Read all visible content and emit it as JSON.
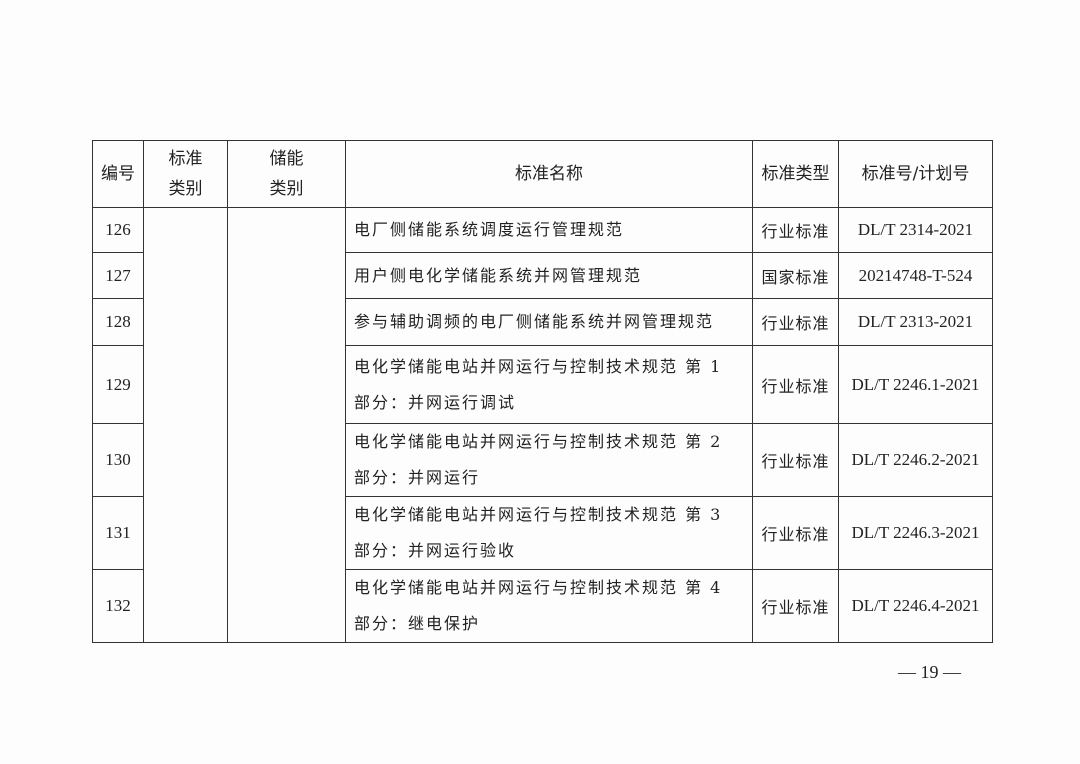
{
  "table": {
    "headers": [
      "编号",
      "标准类别",
      "储能类别",
      "标准名称",
      "标准类型",
      "标准号/计划号"
    ],
    "header_lines": {
      "col2": [
        "标准",
        "类别"
      ],
      "col3": [
        "储能",
        "类别"
      ]
    },
    "rows": [
      {
        "num": "126",
        "name": "电厂侧储能系统调度运行管理规范",
        "type": "行业标准",
        "code": "DL/T 2314-2021"
      },
      {
        "num": "127",
        "name": "用户侧电化学储能系统并网管理规范",
        "type": "国家标准",
        "code": "20214748-T-524"
      },
      {
        "num": "128",
        "name": "参与辅助调频的电厂侧储能系统并网管理规范",
        "type": "行业标准",
        "code": "DL/T 2313-2021"
      },
      {
        "num": "129",
        "name": "电化学储能电站并网运行与控制技术规范 第 1 部分：并网运行调试",
        "type": "行业标准",
        "code": "DL/T 2246.1-2021"
      },
      {
        "num": "130",
        "name": "电化学储能电站并网运行与控制技术规范 第 2 部分：并网运行",
        "type": "行业标准",
        "code": "DL/T 2246.2-2021"
      },
      {
        "num": "131",
        "name": "电化学储能电站并网运行与控制技术规范 第 3 部分：并网运行验收",
        "type": "行业标准",
        "code": "DL/T 2246.3-2021"
      },
      {
        "num": "132",
        "name": "电化学储能电站并网运行与控制技术规范 第 4 部分：继电保护",
        "type": "行业标准",
        "code": "DL/T 2246.4-2021"
      }
    ]
  },
  "page_number": "— 19 —"
}
